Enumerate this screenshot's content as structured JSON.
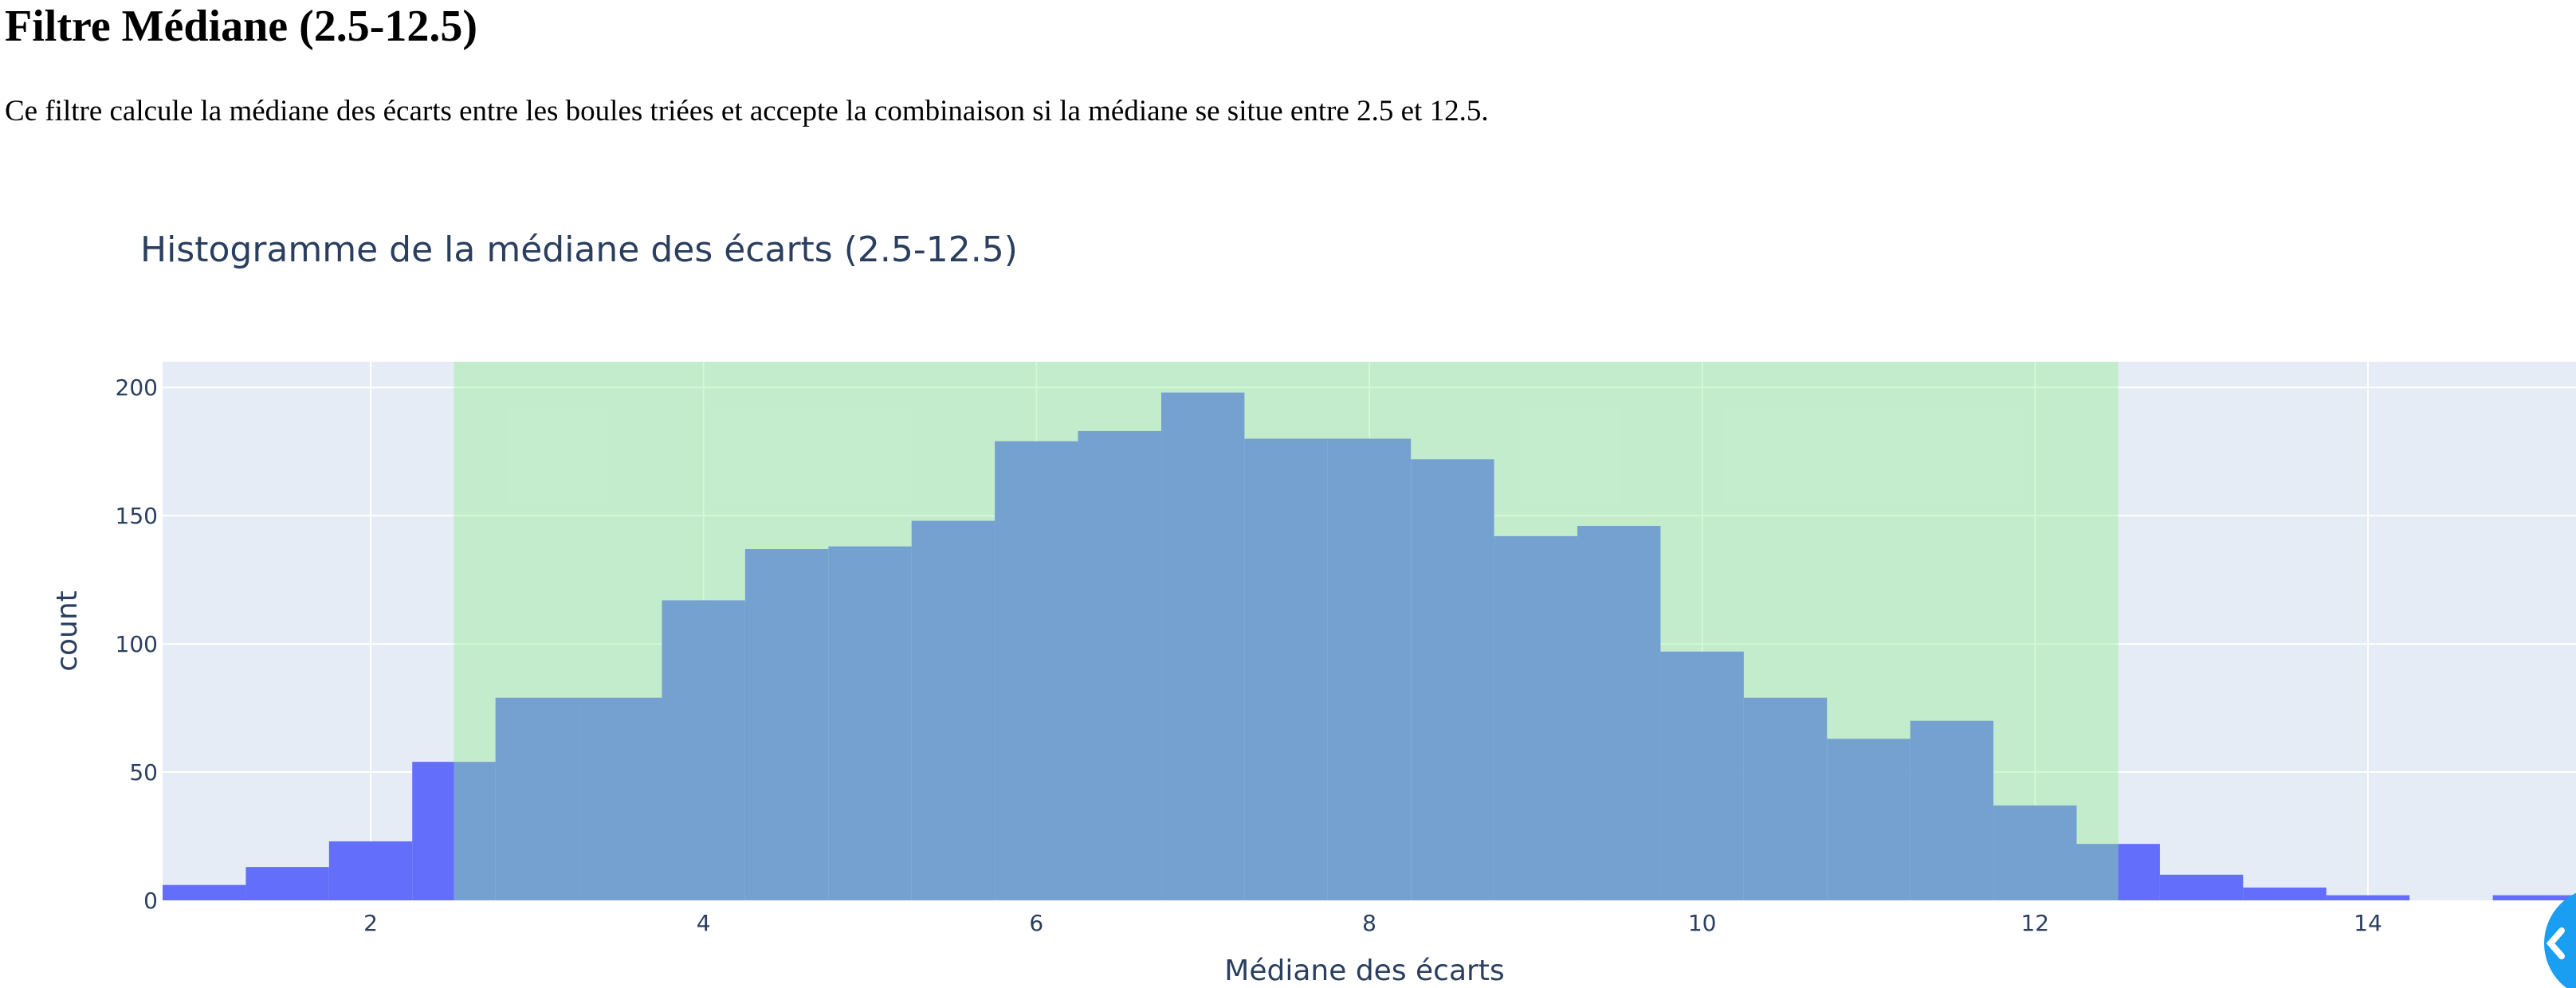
{
  "page": {
    "title": "Filtre Médiane (2.5-12.5)",
    "description": "Ce filtre calcule la médiane des écarts entre les boules triées et accepte la combinaison si la médiane se situe entre 2.5 et 12.5."
  },
  "chart_data": {
    "type": "bar",
    "title": "Histogramme de la médiane des écarts (2.5-12.5)",
    "xlabel": "Médiane des écarts",
    "ylabel": "count",
    "xlim": [
      0.75,
      15.25
    ],
    "ylim": [
      0,
      210
    ],
    "xticks": [
      2,
      4,
      6,
      8,
      10,
      12,
      14
    ],
    "yticks": [
      0,
      50,
      100,
      150,
      200
    ],
    "grid": true,
    "bin_width": 0.5,
    "bins": [
      {
        "start": 0.75,
        "count": 6
      },
      {
        "start": 1.25,
        "count": 13
      },
      {
        "start": 1.75,
        "count": 23
      },
      {
        "start": 2.25,
        "count": 54
      },
      {
        "start": 2.75,
        "count": 79
      },
      {
        "start": 3.25,
        "count": 79
      },
      {
        "start": 3.75,
        "count": 117
      },
      {
        "start": 4.25,
        "count": 137
      },
      {
        "start": 4.75,
        "count": 138
      },
      {
        "start": 5.25,
        "count": 148
      },
      {
        "start": 5.75,
        "count": 179
      },
      {
        "start": 6.25,
        "count": 183
      },
      {
        "start": 6.75,
        "count": 198
      },
      {
        "start": 7.25,
        "count": 180
      },
      {
        "start": 7.75,
        "count": 180
      },
      {
        "start": 8.25,
        "count": 172
      },
      {
        "start": 8.75,
        "count": 142
      },
      {
        "start": 9.25,
        "count": 146
      },
      {
        "start": 9.75,
        "count": 97
      },
      {
        "start": 10.25,
        "count": 79
      },
      {
        "start": 10.75,
        "count": 63
      },
      {
        "start": 11.25,
        "count": 70
      },
      {
        "start": 11.75,
        "count": 37
      },
      {
        "start": 12.25,
        "count": 22
      },
      {
        "start": 12.75,
        "count": 10
      },
      {
        "start": 13.25,
        "count": 5
      },
      {
        "start": 13.75,
        "count": 2
      },
      {
        "start": 14.25,
        "count": 0
      },
      {
        "start": 14.75,
        "count": 2
      }
    ],
    "highlight_range": [
      2.5,
      12.5
    ],
    "colors": {
      "bar": "#636efa",
      "highlight": "#90ee90",
      "plot_bg": "#e5ecf6",
      "grid": "#ffffff",
      "text": "#2a3f5f"
    }
  }
}
